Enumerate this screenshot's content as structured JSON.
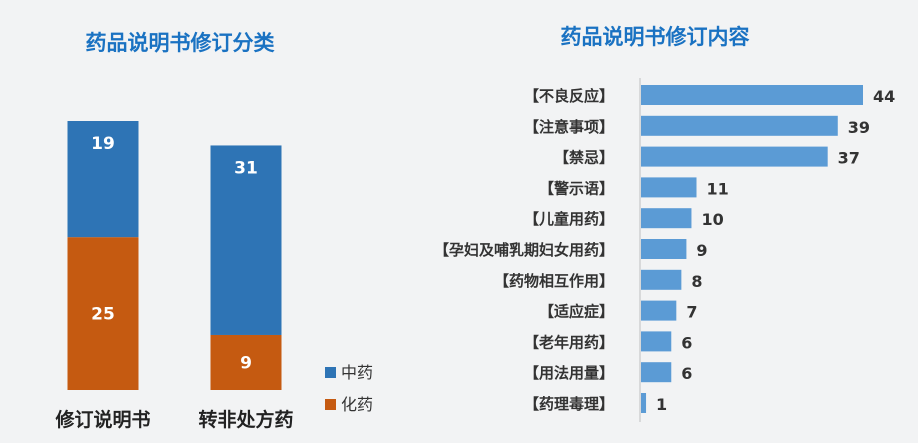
{
  "chart_data": [
    {
      "type": "bar",
      "stacked": true,
      "title": "药品说明书修订分类",
      "categories": [
        "修订说明书",
        "转非处方药"
      ],
      "series": [
        {
          "name": "中药",
          "color": "#2e74b5",
          "values": [
            19,
            31
          ]
        },
        {
          "name": "化药",
          "color": "#c55a11",
          "values": [
            25,
            9
          ]
        }
      ],
      "legend": "bottom-right"
    },
    {
      "type": "bar",
      "orientation": "horizontal",
      "title": "药品说明书修订内容",
      "categories": [
        "【不良反应】",
        "【注意事项】",
        "【禁忌】",
        "【警示语】",
        "【儿童用药】",
        "【孕妇及哺乳期妇女用药】",
        "【药物相互作用】",
        "【适应症】",
        "【老年用药】",
        "【用法用量】",
        "【药理毒理】"
      ],
      "values": [
        44,
        39,
        37,
        11,
        10,
        9,
        8,
        7,
        6,
        6,
        1
      ],
      "color": "#5b9bd5",
      "xlim": [
        0,
        44
      ]
    }
  ]
}
